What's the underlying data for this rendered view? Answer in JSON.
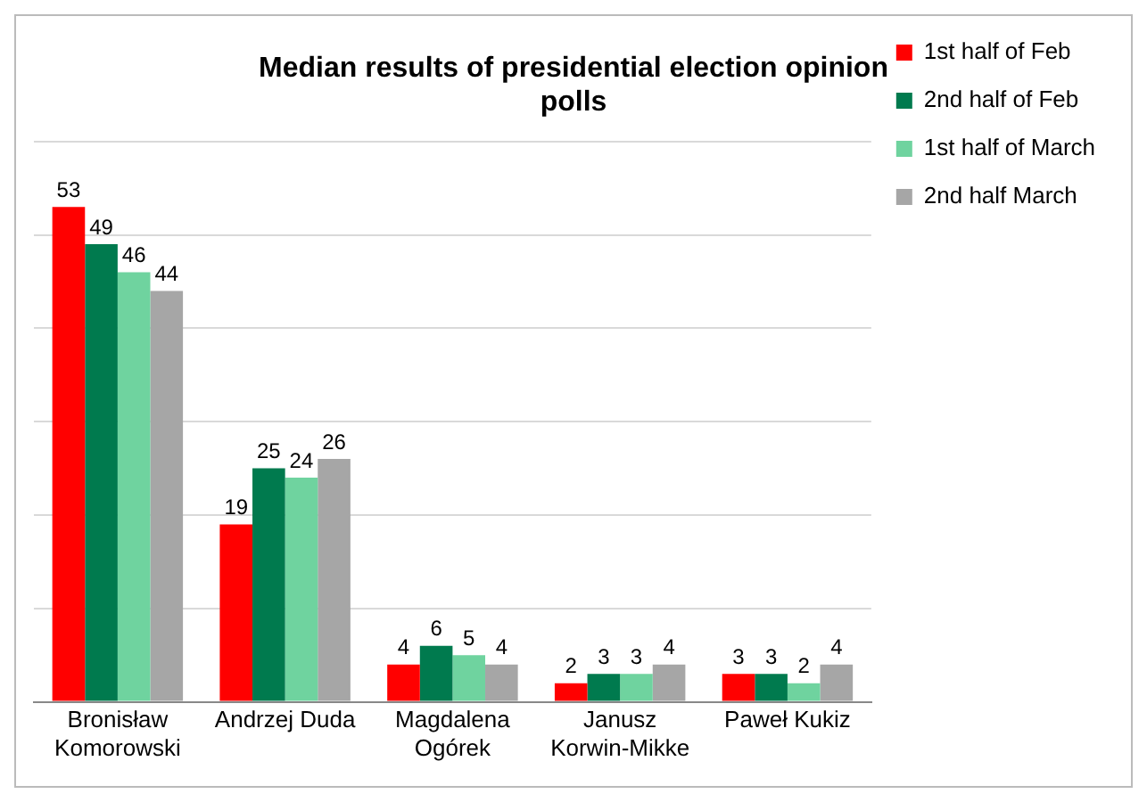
{
  "chart_data": {
    "type": "bar",
    "title": "Median results of presidential election opinion polls",
    "categories": [
      "Bronisław Komorowski",
      "Andrzej Duda",
      "Magdalena Ogórek",
      "Janusz Korwin-Mikke",
      "Paweł Kukiz"
    ],
    "series": [
      {
        "name": "1st half of Feb",
        "color": "#ff0000",
        "values": [
          53,
          19,
          4,
          2,
          3
        ]
      },
      {
        "name": "2nd half of Feb",
        "color": "#007a4e",
        "values": [
          49,
          25,
          6,
          3,
          3
        ]
      },
      {
        "name": "1st half of March",
        "color": "#6fd39f",
        "values": [
          46,
          24,
          5,
          3,
          2
        ]
      },
      {
        "name": "2nd half March",
        "color": "#a6a6a6",
        "values": [
          44,
          26,
          4,
          4,
          4
        ]
      }
    ],
    "ylim": [
      0,
      60
    ],
    "yticks": [
      {
        "value": 0,
        "label": null
      },
      {
        "value": 10,
        "label": null
      },
      {
        "value": 20,
        "label": null
      },
      {
        "value": 30,
        "label": null
      },
      {
        "value": 40,
        "label": null
      },
      {
        "value": 50,
        "label": null
      },
      {
        "value": 60,
        "label": null
      }
    ],
    "tick_labels": "x",
    "grid": "y",
    "legend": "top right",
    "data_labels": true
  }
}
